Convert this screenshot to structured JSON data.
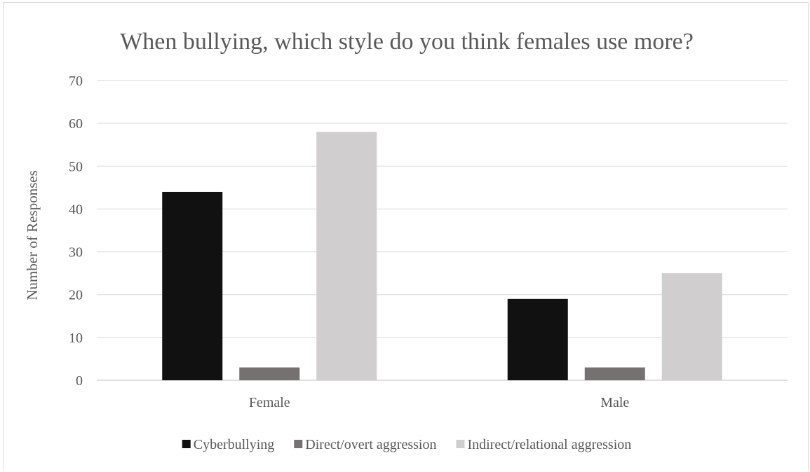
{
  "chart_data": {
    "type": "bar",
    "title": "When bullying, which style do you think females use more?",
    "xlabel": "",
    "ylabel": "Number of Responses",
    "categories": [
      "Female",
      "Male"
    ],
    "series": [
      {
        "name": "Cyberbullying",
        "color": "#111111",
        "values": [
          44,
          19
        ]
      },
      {
        "name": "Direct/overt aggression",
        "color": "#767171",
        "values": [
          3,
          3
        ]
      },
      {
        "name": "Indirect/relational aggression",
        "color": "#d0cece",
        "values": [
          58,
          25
        ]
      }
    ],
    "ylim": [
      0,
      70
    ],
    "yticks": [
      0,
      10,
      20,
      30,
      40,
      50,
      60,
      70
    ],
    "grid": true,
    "legend_position": "bottom"
  }
}
